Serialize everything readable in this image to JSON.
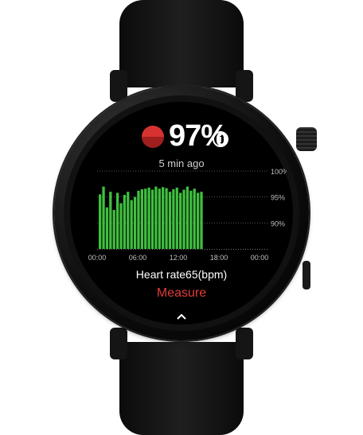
{
  "app": {
    "spo2_value": "97%",
    "timestamp": "5 min ago",
    "heart_rate_label": "Heart rate65(bpm)",
    "measure_label": "Measure",
    "info_icon": "info-icon",
    "spo2_icon": "blood-oxygen-icon",
    "expand_icon": "chevron-up-icon"
  },
  "colors": {
    "accent_red": "#e23a3a",
    "bar_green": "#3fbf3f",
    "screen_bg": "#000000"
  },
  "chart_data": {
    "type": "bar",
    "y_ticks": [
      "100%",
      "95%",
      "90%"
    ],
    "x_ticks": [
      "00:00",
      "06:00",
      "12:00",
      "18:00",
      "00:00"
    ],
    "ylim": [
      85,
      100
    ],
    "grid": true,
    "values": [
      95.5,
      97,
      93,
      96,
      92.5,
      95.8,
      93.8,
      95.4,
      96,
      94.4,
      95,
      96.2,
      96.5,
      96.6,
      96.8,
      96.4,
      97,
      96.6,
      96.9,
      96.7,
      96,
      96.5,
      96.8,
      95.8,
      96.4,
      97,
      96.2,
      96.6,
      95.8,
      96
    ]
  }
}
